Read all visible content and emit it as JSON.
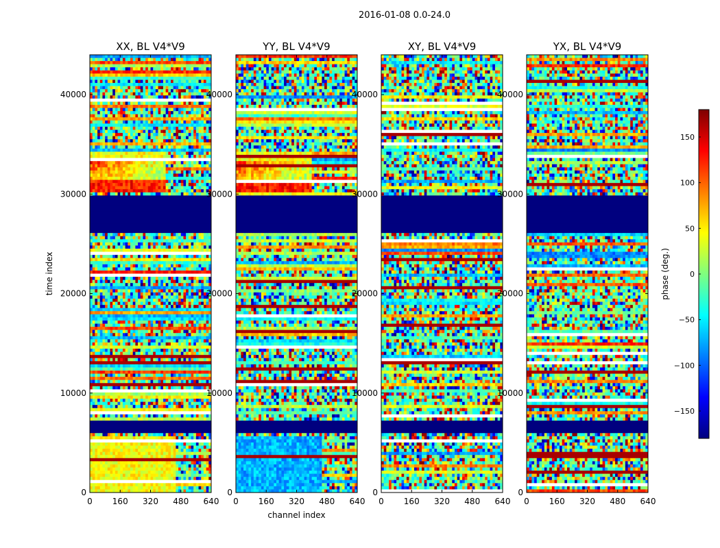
{
  "figure_title": "2016-01-08 0.0-24.0",
  "colorbar": {
    "label": "phase (deg.)",
    "range": [
      -180,
      180
    ],
    "ticks": [
      "150",
      "100",
      "50",
      "0",
      "−50",
      "−100",
      "−150"
    ],
    "tick_values": [
      150,
      100,
      50,
      0,
      -50,
      -100,
      -150
    ],
    "colormap": [
      "#00007f",
      "#0000ff",
      "#007fff",
      "#00ffff",
      "#7fff7f",
      "#ffff00",
      "#ff7f00",
      "#ff0000",
      "#7f0000"
    ]
  },
  "chart_data": [
    {
      "type": "heatmap",
      "title": "XX, BL V4*V9",
      "xlabel": "",
      "ylabel": "time index",
      "xlim": [
        0,
        640
      ],
      "ylim": [
        0,
        44000
      ],
      "xticks": [
        "0",
        "160",
        "320",
        "480",
        "640"
      ],
      "yticks": [
        "0",
        "10000",
        "20000",
        "30000",
        "40000"
      ],
      "x_tick_values": [
        0,
        160,
        320,
        480,
        640
      ],
      "y_tick_values": [
        0,
        10000,
        20000,
        30000,
        40000
      ],
      "flagged_time_ranges": [
        [
          26200,
          29900
        ],
        [
          6000,
          7300
        ]
      ],
      "coherent_band": [
        30300,
        34200
      ],
      "coherent_band_edge_channel": 400,
      "dominant_low_band_color": "#ffff00"
    },
    {
      "type": "heatmap",
      "title": "YY, BL V4*V9",
      "xlabel": "channel index",
      "ylabel": "",
      "xlim": [
        0,
        640
      ],
      "ylim": [
        0,
        44000
      ],
      "xticks": [
        "0",
        "160",
        "320",
        "480",
        "640"
      ],
      "yticks": [
        "0",
        "10000",
        "20000",
        "30000",
        "40000"
      ],
      "x_tick_values": [
        0,
        160,
        320,
        480,
        640
      ],
      "y_tick_values": [
        0,
        10000,
        20000,
        30000,
        40000
      ],
      "flagged_time_ranges": [
        [
          26200,
          29900
        ],
        [
          6000,
          7300
        ]
      ],
      "coherent_band": [
        30300,
        34200
      ],
      "coherent_band_edge_channel": 400,
      "dominant_low_band_color": "#007fff"
    },
    {
      "type": "heatmap",
      "title": "XY, BL V4*V9",
      "xlabel": "",
      "ylabel": "",
      "xlim": [
        0,
        640
      ],
      "ylim": [
        0,
        44000
      ],
      "xticks": [
        "0",
        "160",
        "320",
        "480",
        "640"
      ],
      "yticks": [
        "0",
        "10000",
        "20000",
        "30000",
        "40000"
      ],
      "x_tick_values": [
        0,
        160,
        320,
        480,
        640
      ],
      "y_tick_values": [
        0,
        10000,
        20000,
        30000,
        40000
      ],
      "flagged_time_ranges": [
        [
          26200,
          29900
        ],
        [
          6000,
          7300
        ]
      ],
      "coherent_band": null,
      "coherent_band_edge_channel": null,
      "dominant_low_band_color": null
    },
    {
      "type": "heatmap",
      "title": "YX, BL V4*V9",
      "xlabel": "",
      "ylabel": "",
      "xlim": [
        0,
        640
      ],
      "ylim": [
        0,
        44000
      ],
      "xticks": [
        "0",
        "160",
        "320",
        "480",
        "640"
      ],
      "yticks": [
        "0",
        "10000",
        "20000",
        "30000",
        "40000"
      ],
      "x_tick_values": [
        0,
        160,
        320,
        480,
        640
      ],
      "y_tick_values": [
        0,
        10000,
        20000,
        30000,
        40000
      ],
      "flagged_time_ranges": [
        [
          26200,
          29900
        ],
        [
          6000,
          7300
        ]
      ],
      "coherent_band": null,
      "coherent_band_edge_channel": null,
      "dominant_low_band_color": null
    }
  ]
}
